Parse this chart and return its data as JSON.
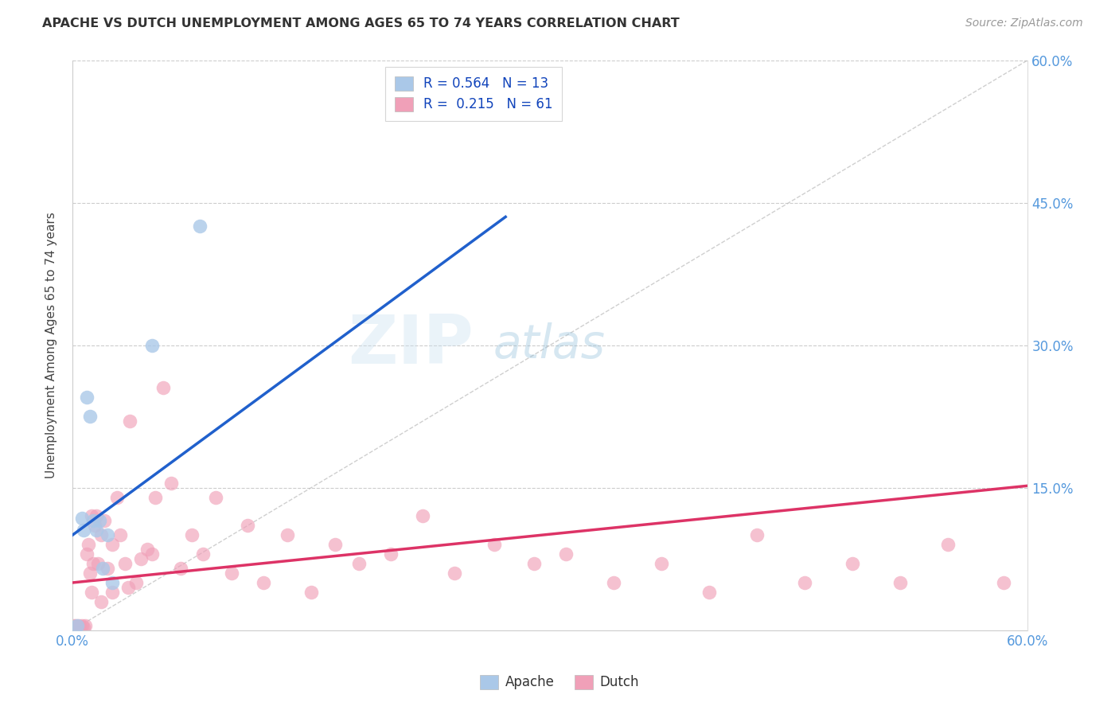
{
  "title": "APACHE VS DUTCH UNEMPLOYMENT AMONG AGES 65 TO 74 YEARS CORRELATION CHART",
  "source": "Source: ZipAtlas.com",
  "ylabel": "Unemployment Among Ages 65 to 74 years",
  "xlim": [
    0.0,
    0.6
  ],
  "ylim": [
    0.0,
    0.6
  ],
  "xticks": [
    0.0,
    0.1,
    0.2,
    0.3,
    0.4,
    0.5,
    0.6
  ],
  "yticks": [
    0.0,
    0.15,
    0.3,
    0.45,
    0.6
  ],
  "xticklabels": [
    "0.0%",
    "",
    "",
    "",
    "",
    "",
    "60.0%"
  ],
  "yticklabels_right": [
    "",
    "15.0%",
    "30.0%",
    "45.0%",
    "60.0%"
  ],
  "watermark_zip": "ZIP",
  "watermark_atlas": "atlas",
  "legend_apache_r": "0.564",
  "legend_apache_n": "13",
  "legend_dutch_r": "0.215",
  "legend_dutch_n": "61",
  "apache_color": "#aac8e8",
  "dutch_color": "#f0a0b8",
  "apache_line_color": "#2060cc",
  "dutch_line_color": "#dd3366",
  "apache_line_x0": 0.0,
  "apache_line_y0": 0.1,
  "apache_line_x1": 0.272,
  "apache_line_y1": 0.435,
  "dutch_line_x0": 0.0,
  "dutch_line_y0": 0.05,
  "dutch_line_x1": 0.6,
  "dutch_line_y1": 0.152,
  "apache_scatter_x": [
    0.003,
    0.006,
    0.007,
    0.009,
    0.011,
    0.013,
    0.015,
    0.017,
    0.019,
    0.022,
    0.025,
    0.05,
    0.08
  ],
  "apache_scatter_y": [
    0.005,
    0.118,
    0.105,
    0.245,
    0.225,
    0.115,
    0.105,
    0.115,
    0.065,
    0.1,
    0.05,
    0.3,
    0.425
  ],
  "dutch_scatter_x": [
    0.001,
    0.002,
    0.003,
    0.004,
    0.005,
    0.006,
    0.007,
    0.008,
    0.009,
    0.01,
    0.011,
    0.012,
    0.013,
    0.014,
    0.015,
    0.016,
    0.018,
    0.02,
    0.022,
    0.025,
    0.028,
    0.03,
    0.033,
    0.036,
    0.04,
    0.043,
    0.047,
    0.052,
    0.057,
    0.062,
    0.068,
    0.075,
    0.082,
    0.09,
    0.1,
    0.11,
    0.12,
    0.135,
    0.15,
    0.165,
    0.18,
    0.2,
    0.22,
    0.24,
    0.265,
    0.29,
    0.31,
    0.34,
    0.37,
    0.4,
    0.43,
    0.46,
    0.49,
    0.52,
    0.55,
    0.585,
    0.012,
    0.018,
    0.025,
    0.035,
    0.05
  ],
  "dutch_scatter_y": [
    0.005,
    0.005,
    0.003,
    0.005,
    0.003,
    0.005,
    0.003,
    0.005,
    0.08,
    0.09,
    0.06,
    0.12,
    0.07,
    0.11,
    0.12,
    0.07,
    0.1,
    0.115,
    0.065,
    0.09,
    0.14,
    0.1,
    0.07,
    0.22,
    0.05,
    0.075,
    0.085,
    0.14,
    0.255,
    0.155,
    0.065,
    0.1,
    0.08,
    0.14,
    0.06,
    0.11,
    0.05,
    0.1,
    0.04,
    0.09,
    0.07,
    0.08,
    0.12,
    0.06,
    0.09,
    0.07,
    0.08,
    0.05,
    0.07,
    0.04,
    0.1,
    0.05,
    0.07,
    0.05,
    0.09,
    0.05,
    0.04,
    0.03,
    0.04,
    0.045,
    0.08
  ]
}
